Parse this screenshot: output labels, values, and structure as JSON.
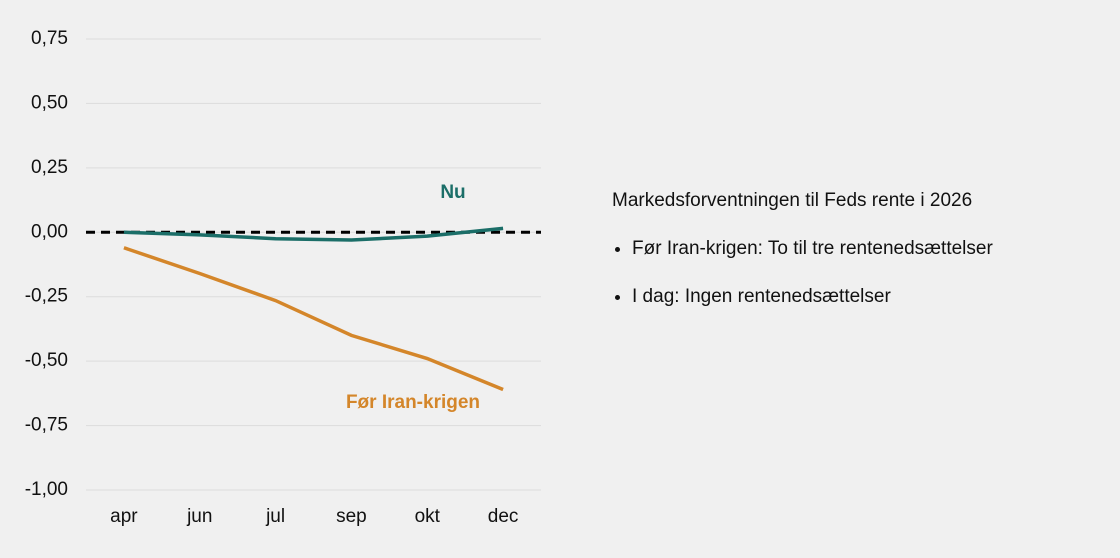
{
  "chart_data": {
    "type": "line",
    "categories": [
      "apr",
      "jun",
      "jul",
      "sep",
      "okt",
      "dec"
    ],
    "series": [
      {
        "name": "Nu",
        "color": "#1b6e68",
        "values": [
          0.0,
          -0.01,
          -0.025,
          -0.03,
          -0.015,
          0.015
        ]
      },
      {
        "name": "Før Iran-krigen",
        "color": "#d4862a",
        "values": [
          -0.06,
          -0.16,
          -0.265,
          -0.4,
          -0.49,
          -0.61
        ]
      }
    ],
    "ylim": [
      -1,
      0.75
    ],
    "yticks": [
      {
        "value": 0.75,
        "label": "0,75"
      },
      {
        "value": 0.5,
        "label": "0,50"
      },
      {
        "value": 0.25,
        "label": "0,25"
      },
      {
        "value": 0,
        "label": "0,00"
      },
      {
        "value": -0.25,
        "label": "-0,25"
      },
      {
        "value": -0.5,
        "label": "-0,50"
      },
      {
        "value": -0.75,
        "label": "-0,75"
      },
      {
        "value": -1,
        "label": "-1,00"
      }
    ],
    "grid": true,
    "reference_line": 0
  },
  "notes": {
    "title": "Markedsforventningen til Feds rente i 2026",
    "items": [
      "Før Iran-krigen: To til tre rentenedsættelser",
      "I dag: Ingen rentenedsættelser"
    ]
  }
}
